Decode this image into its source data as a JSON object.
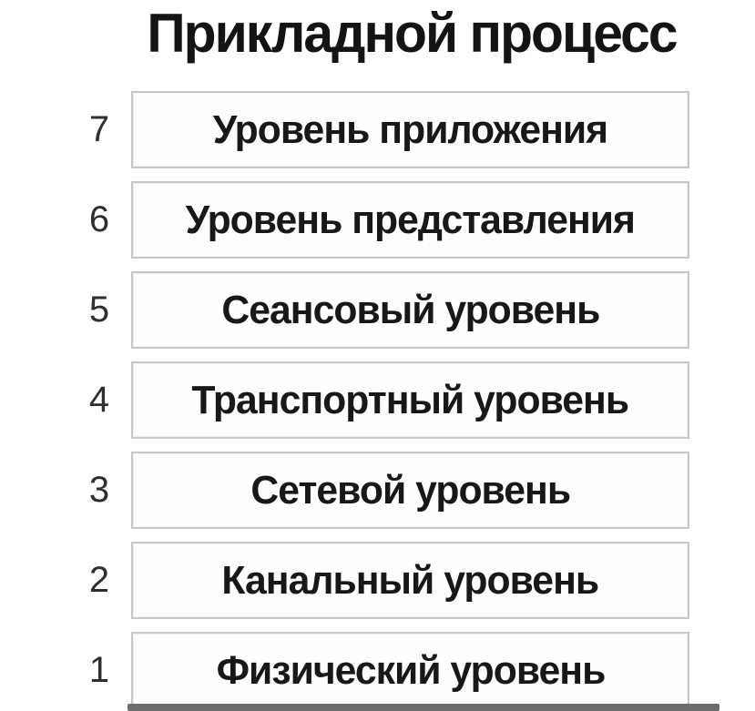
{
  "title": "Прикладной процесс",
  "layers": [
    {
      "number": "7",
      "label": "Уровень приложения"
    },
    {
      "number": "6",
      "label": "Уровень представления"
    },
    {
      "number": "5",
      "label": "Сеансовый уровень"
    },
    {
      "number": "4",
      "label": "Транспортный уровень"
    },
    {
      "number": "3",
      "label": "Сетевой уровень"
    },
    {
      "number": "2",
      "label": "Канальный уровень"
    },
    {
      "number": "1",
      "label": "Физический уровень"
    }
  ],
  "colors": {
    "text_ink": "#181818",
    "number_ink": "#2e2e2e",
    "box_border": "#c7c7c7",
    "bottom_line": "#6c6c6c",
    "background": "#fffffe"
  }
}
